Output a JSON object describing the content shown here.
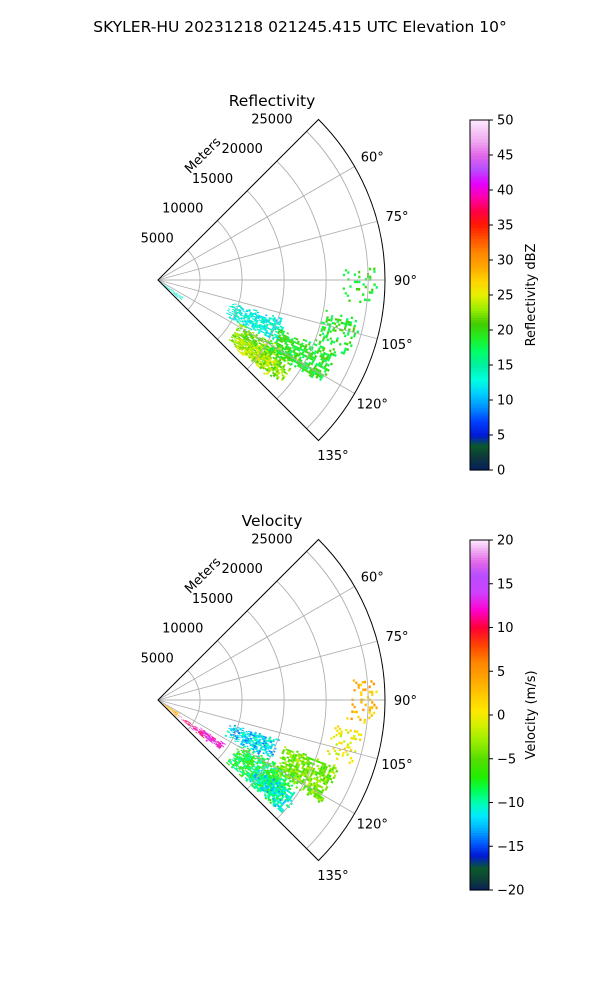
{
  "figure": {
    "suptitle": "SKYLER-HU  20231218  021245.415 UTC Elevation 10°"
  },
  "chart_data": [
    {
      "type": "heatmap",
      "subtype": "polar-sector-radar-ppi",
      "title": "Reflectivity",
      "radial_axis_label": "Meters",
      "range_ticks": [
        5000,
        10000,
        15000,
        20000,
        25000
      ],
      "range_tick_labels": [
        "5000",
        "10000",
        "15000",
        "20000",
        "25000"
      ],
      "rmax": 27000,
      "azimuth_range_deg": [
        45,
        135
      ],
      "azimuth_ticks_deg": [
        60,
        75,
        90,
        105,
        120,
        135
      ],
      "azimuth_tick_labels": [
        "60°",
        "75°",
        "90°",
        "105°",
        "120°",
        "135°"
      ],
      "grid": true,
      "colorbar": {
        "label": "Reflectivity dBZ",
        "min": 0,
        "max": 50,
        "ticks": [
          0,
          5,
          10,
          15,
          20,
          25,
          30,
          35,
          40,
          45,
          50
        ],
        "tick_labels": [
          "0",
          "5",
          "10",
          "15",
          "20",
          "25",
          "30",
          "35",
          "40",
          "45",
          "50"
        ],
        "stops": [
          [
            0,
            "#061d5c"
          ],
          [
            2,
            "#0d3a3a"
          ],
          [
            3.5,
            "#0b5a2c"
          ],
          [
            5,
            "#0018d8"
          ],
          [
            7,
            "#0040ff"
          ],
          [
            9,
            "#0090ff"
          ],
          [
            11,
            "#00d0ff"
          ],
          [
            13,
            "#00ffe0"
          ],
          [
            15,
            "#00f0a0"
          ],
          [
            17,
            "#00ff66"
          ],
          [
            19,
            "#22ee22"
          ],
          [
            21,
            "#44cc00"
          ],
          [
            23,
            "#99ee00"
          ],
          [
            25,
            "#e6f000"
          ],
          [
            27,
            "#ffd500"
          ],
          [
            29,
            "#ffa800"
          ],
          [
            31,
            "#ff8800"
          ],
          [
            33,
            "#ff5500"
          ],
          [
            35,
            "#ff1a00"
          ],
          [
            37,
            "#ff0044"
          ],
          [
            39,
            "#ff00aa"
          ],
          [
            41,
            "#e500ff"
          ],
          [
            43,
            "#b84dff"
          ],
          [
            45,
            "#e266e8"
          ],
          [
            47,
            "#f0a8f0"
          ],
          [
            50,
            "#fde8fd"
          ]
        ]
      },
      "echo_regions": [
        {
          "az": [
            124,
            132
          ],
          "r": [
            0,
            3500
          ],
          "value": 13,
          "density": 0.6
        },
        {
          "az": [
            107,
            118
          ],
          "r": [
            9000,
            16000
          ],
          "value": 13,
          "density": 0.7
        },
        {
          "az": [
            118,
            130
          ],
          "r": [
            11000,
            19000
          ],
          "value": 22,
          "density": 0.85
        },
        {
          "az": [
            124,
            131
          ],
          "r": [
            11000,
            17000
          ],
          "value": 24,
          "density": 0.7
        },
        {
          "az": [
            112,
            122
          ],
          "r": [
            15000,
            23000
          ],
          "value": 19,
          "density": 0.75
        },
        {
          "az": [
            100,
            112
          ],
          "r": [
            20000,
            24500
          ],
          "value": 19,
          "density": 0.35
        },
        {
          "az": [
            86,
            97
          ],
          "r": [
            22000,
            26000
          ],
          "value": 19,
          "density": 0.2
        }
      ]
    },
    {
      "type": "heatmap",
      "subtype": "polar-sector-radar-ppi",
      "title": "Velocity",
      "radial_axis_label": "Meters",
      "range_ticks": [
        5000,
        10000,
        15000,
        20000,
        25000
      ],
      "range_tick_labels": [
        "5000",
        "10000",
        "15000",
        "20000",
        "25000"
      ],
      "rmax": 27000,
      "azimuth_range_deg": [
        45,
        135
      ],
      "azimuth_ticks_deg": [
        60,
        75,
        90,
        105,
        120,
        135
      ],
      "azimuth_tick_labels": [
        "60°",
        "75°",
        "90°",
        "105°",
        "120°",
        "135°"
      ],
      "grid": true,
      "colorbar": {
        "label": "Velocity (m/s)",
        "min": -20,
        "max": 20,
        "ticks": [
          -20,
          -15,
          -10,
          -5,
          0,
          5,
          10,
          15,
          20
        ],
        "tick_labels": [
          "−20",
          "−15",
          "−10",
          "−5",
          "0",
          "5",
          "10",
          "15",
          "20"
        ],
        "stops": [
          [
            -20,
            "#061d5c"
          ],
          [
            -19,
            "#0d3a3a"
          ],
          [
            -17.5,
            "#0b5a2c"
          ],
          [
            -16,
            "#0018d8"
          ],
          [
            -14.5,
            "#0060ff"
          ],
          [
            -13,
            "#00b0ff"
          ],
          [
            -11.5,
            "#00eaff"
          ],
          [
            -10,
            "#00ffb0"
          ],
          [
            -8.5,
            "#00ff50"
          ],
          [
            -7,
            "#22ee00"
          ],
          [
            -5,
            "#55dd00"
          ],
          [
            -3,
            "#99ee00"
          ],
          [
            -1,
            "#d6f000"
          ],
          [
            0.5,
            "#ffe800"
          ],
          [
            2,
            "#ffd000"
          ],
          [
            4,
            "#ffa800"
          ],
          [
            6,
            "#ff8800"
          ],
          [
            8,
            "#ff4400"
          ],
          [
            10,
            "#ff0033"
          ],
          [
            12,
            "#ff00cc"
          ],
          [
            14,
            "#d040ff"
          ],
          [
            16,
            "#b84dff"
          ],
          [
            17.5,
            "#e266e8"
          ],
          [
            20,
            "#fde8fd"
          ]
        ]
      },
      "echo_regions": [
        {
          "az": [
            120,
            133
          ],
          "r": [
            0,
            3000
          ],
          "value": 4,
          "density": 0.7
        },
        {
          "az": [
            125,
            130
          ],
          "r": [
            3000,
            7500
          ],
          "value": 11,
          "density": 0.55
        },
        {
          "az": [
            123,
            128
          ],
          "r": [
            6000,
            9500
          ],
          "value": 13,
          "density": 0.8
        },
        {
          "az": [
            108,
            118
          ],
          "r": [
            9000,
            15000
          ],
          "value": -12,
          "density": 0.75
        },
        {
          "az": [
            118,
            132
          ],
          "r": [
            11000,
            19000
          ],
          "value": -8,
          "density": 0.85
        },
        {
          "az": [
            124,
            132
          ],
          "r": [
            14000,
            20000
          ],
          "value": -11,
          "density": 0.7
        },
        {
          "az": [
            110,
            122
          ],
          "r": [
            16000,
            23000
          ],
          "value": -4,
          "density": 0.7
        },
        {
          "az": [
            98,
            108
          ],
          "r": [
            21000,
            24500
          ],
          "value": 0,
          "density": 0.4
        },
        {
          "az": [
            84,
            96
          ],
          "r": [
            22500,
            26000
          ],
          "value": 3,
          "density": 0.25
        }
      ]
    }
  ]
}
